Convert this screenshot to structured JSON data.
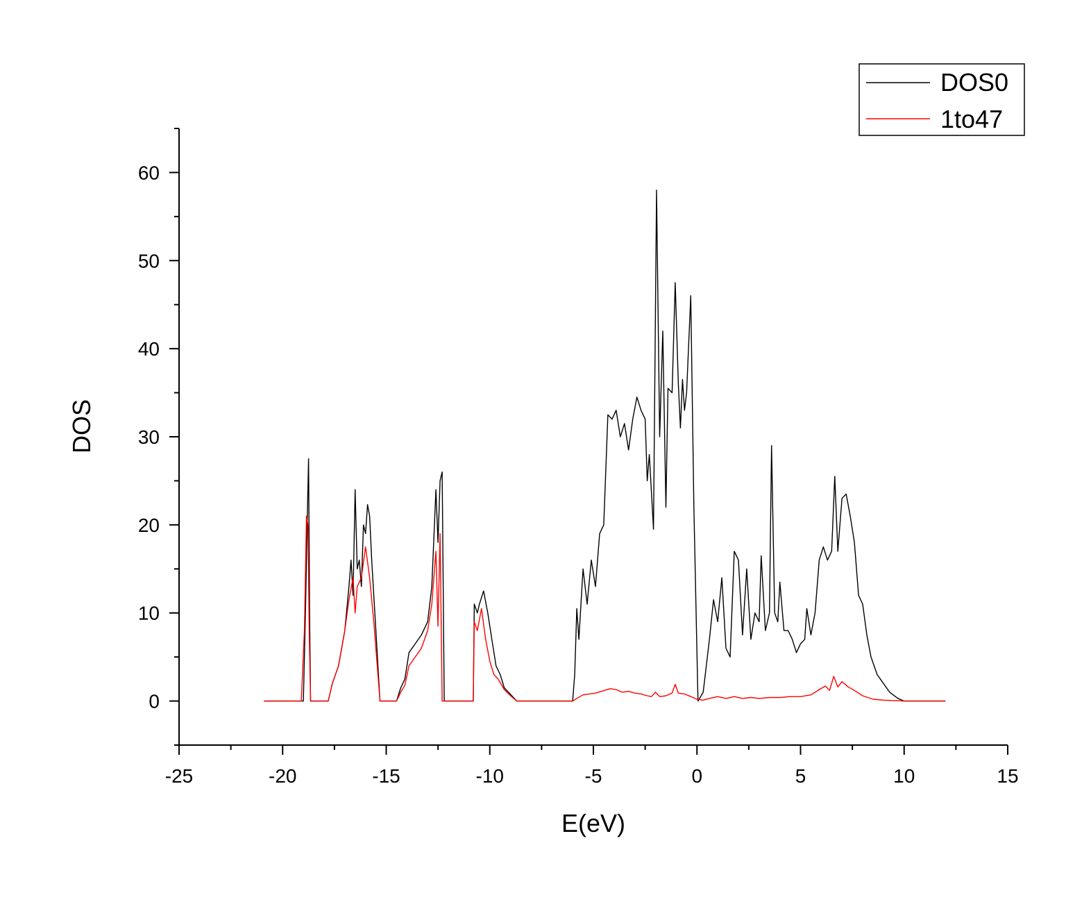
{
  "chart_data": {
    "type": "line",
    "xlabel": "E(eV)",
    "ylabel": "DOS",
    "xlim": [
      -25,
      15
    ],
    "ylim": [
      -5,
      65
    ],
    "x_major_ticks": [
      -25,
      -20,
      -15,
      -10,
      -5,
      0,
      5,
      10,
      15
    ],
    "x_tick_labels": [
      "-25",
      "-20",
      "-15",
      "-10",
      "-5",
      "0",
      "5",
      "10",
      "15"
    ],
    "x_minor_step": 2.5,
    "y_major_ticks": [
      0,
      10,
      20,
      30,
      40,
      50,
      60
    ],
    "y_tick_labels": [
      "0",
      "10",
      "20",
      "30",
      "40",
      "50",
      "60"
    ],
    "y_minor_step": 5,
    "grid": false,
    "legend": {
      "position": "top-right",
      "entries": [
        "DOS0",
        "1to47"
      ]
    },
    "series": [
      {
        "name": "DOS0",
        "color": "#000000",
        "points": [
          [
            -20.9,
            0
          ],
          [
            -19.0,
            0
          ],
          [
            -18.9,
            10
          ],
          [
            -18.8,
            22
          ],
          [
            -18.75,
            27.5
          ],
          [
            -18.7,
            10
          ],
          [
            -18.65,
            0
          ],
          [
            -17.8,
            0
          ],
          [
            -17.6,
            2
          ],
          [
            -17.3,
            4
          ],
          [
            -17.0,
            8
          ],
          [
            -16.8,
            13
          ],
          [
            -16.7,
            16
          ],
          [
            -16.6,
            12
          ],
          [
            -16.5,
            24
          ],
          [
            -16.4,
            15
          ],
          [
            -16.3,
            16
          ],
          [
            -16.2,
            13
          ],
          [
            -16.1,
            20
          ],
          [
            -16.0,
            19
          ],
          [
            -15.9,
            22.3
          ],
          [
            -15.8,
            21
          ],
          [
            -15.7,
            16
          ],
          [
            -15.5,
            8
          ],
          [
            -15.3,
            0
          ],
          [
            -14.5,
            0
          ],
          [
            -14.3,
            1.5
          ],
          [
            -14.1,
            2.5
          ],
          [
            -13.9,
            5.5
          ],
          [
            -13.6,
            6.5
          ],
          [
            -13.3,
            7.5
          ],
          [
            -13.0,
            9
          ],
          [
            -12.8,
            13
          ],
          [
            -12.6,
            24
          ],
          [
            -12.5,
            18
          ],
          [
            -12.4,
            25
          ],
          [
            -12.3,
            26
          ],
          [
            -12.2,
            0
          ],
          [
            -10.8,
            0
          ],
          [
            -10.75,
            11
          ],
          [
            -10.6,
            10
          ],
          [
            -10.5,
            11
          ],
          [
            -10.3,
            12.5
          ],
          [
            -10.1,
            10
          ],
          [
            -9.9,
            7
          ],
          [
            -9.7,
            4
          ],
          [
            -9.5,
            3
          ],
          [
            -9.3,
            1.5
          ],
          [
            -9.1,
            1
          ],
          [
            -8.9,
            0.5
          ],
          [
            -8.7,
            0
          ],
          [
            -6.0,
            0
          ],
          [
            -5.9,
            3
          ],
          [
            -5.8,
            10.5
          ],
          [
            -5.7,
            7
          ],
          [
            -5.5,
            15
          ],
          [
            -5.3,
            11
          ],
          [
            -5.1,
            16
          ],
          [
            -4.9,
            13
          ],
          [
            -4.7,
            19
          ],
          [
            -4.5,
            20
          ],
          [
            -4.3,
            32.5
          ],
          [
            -4.1,
            32
          ],
          [
            -3.9,
            33
          ],
          [
            -3.7,
            30
          ],
          [
            -3.5,
            31.5
          ],
          [
            -3.3,
            28.5
          ],
          [
            -3.1,
            32
          ],
          [
            -2.9,
            34.5
          ],
          [
            -2.7,
            33
          ],
          [
            -2.5,
            32
          ],
          [
            -2.4,
            25
          ],
          [
            -2.3,
            28
          ],
          [
            -2.1,
            19.5
          ],
          [
            -1.95,
            58
          ],
          [
            -1.8,
            30
          ],
          [
            -1.65,
            42
          ],
          [
            -1.5,
            22
          ],
          [
            -1.4,
            35.5
          ],
          [
            -1.2,
            35
          ],
          [
            -1.05,
            47.5
          ],
          [
            -0.9,
            36
          ],
          [
            -0.8,
            31
          ],
          [
            -0.7,
            36.5
          ],
          [
            -0.6,
            33
          ],
          [
            -0.5,
            35
          ],
          [
            -0.3,
            46
          ],
          [
            -0.15,
            22
          ],
          [
            0.05,
            0
          ],
          [
            0.3,
            1
          ],
          [
            0.6,
            7
          ],
          [
            0.8,
            11.5
          ],
          [
            1.0,
            9
          ],
          [
            1.2,
            14
          ],
          [
            1.4,
            6
          ],
          [
            1.6,
            5
          ],
          [
            1.8,
            17
          ],
          [
            2.0,
            16
          ],
          [
            2.2,
            7.5
          ],
          [
            2.4,
            15
          ],
          [
            2.6,
            7
          ],
          [
            2.8,
            10
          ],
          [
            3.0,
            9
          ],
          [
            3.1,
            16.5
          ],
          [
            3.3,
            8
          ],
          [
            3.5,
            10
          ],
          [
            3.6,
            29
          ],
          [
            3.75,
            10
          ],
          [
            3.9,
            9
          ],
          [
            4.0,
            13.5
          ],
          [
            4.2,
            8
          ],
          [
            4.4,
            8
          ],
          [
            4.6,
            7
          ],
          [
            4.8,
            5.5
          ],
          [
            5.0,
            6.5
          ],
          [
            5.2,
            7
          ],
          [
            5.3,
            10.5
          ],
          [
            5.5,
            7.5
          ],
          [
            5.7,
            10
          ],
          [
            5.9,
            16
          ],
          [
            6.1,
            17.5
          ],
          [
            6.3,
            16
          ],
          [
            6.5,
            17
          ],
          [
            6.65,
            25.5
          ],
          [
            6.8,
            17
          ],
          [
            7.0,
            23
          ],
          [
            7.2,
            23.5
          ],
          [
            7.4,
            21
          ],
          [
            7.6,
            18
          ],
          [
            7.8,
            12
          ],
          [
            8.0,
            11
          ],
          [
            8.2,
            7.5
          ],
          [
            8.4,
            5
          ],
          [
            8.7,
            3
          ],
          [
            9.0,
            2
          ],
          [
            9.3,
            1
          ],
          [
            9.7,
            0.3
          ],
          [
            10.0,
            0
          ],
          [
            12.0,
            0
          ]
        ]
      },
      {
        "name": "1to47",
        "color": "#ff0000",
        "points": [
          [
            -20.9,
            0
          ],
          [
            -19.1,
            0
          ],
          [
            -18.95,
            8
          ],
          [
            -18.85,
            21
          ],
          [
            -18.78,
            20
          ],
          [
            -18.72,
            8
          ],
          [
            -18.65,
            0
          ],
          [
            -17.8,
            0
          ],
          [
            -17.6,
            2
          ],
          [
            -17.3,
            4
          ],
          [
            -17.0,
            8
          ],
          [
            -16.8,
            11.5
          ],
          [
            -16.6,
            14
          ],
          [
            -16.5,
            10
          ],
          [
            -16.4,
            13
          ],
          [
            -16.2,
            14
          ],
          [
            -16.0,
            17.5
          ],
          [
            -15.8,
            14
          ],
          [
            -15.6,
            9
          ],
          [
            -15.3,
            0
          ],
          [
            -14.5,
            0
          ],
          [
            -14.3,
            1
          ],
          [
            -14.1,
            1.8
          ],
          [
            -13.9,
            4
          ],
          [
            -13.6,
            5
          ],
          [
            -13.3,
            6
          ],
          [
            -13.0,
            8
          ],
          [
            -12.8,
            11
          ],
          [
            -12.6,
            17
          ],
          [
            -12.5,
            8.5
          ],
          [
            -12.4,
            19
          ],
          [
            -12.3,
            0
          ],
          [
            -10.8,
            0
          ],
          [
            -10.75,
            9
          ],
          [
            -10.6,
            8
          ],
          [
            -10.4,
            10.5
          ],
          [
            -10.2,
            7
          ],
          [
            -10.0,
            4.5
          ],
          [
            -9.8,
            3
          ],
          [
            -9.6,
            2.5
          ],
          [
            -9.3,
            1.3
          ],
          [
            -9.0,
            0.6
          ],
          [
            -8.7,
            0
          ],
          [
            -6.0,
            0
          ],
          [
            -5.8,
            0.3
          ],
          [
            -5.5,
            0.7
          ],
          [
            -5.2,
            0.8
          ],
          [
            -4.9,
            0.9
          ],
          [
            -4.6,
            1.1
          ],
          [
            -4.2,
            1.4
          ],
          [
            -3.9,
            1.3
          ],
          [
            -3.6,
            1.0
          ],
          [
            -3.3,
            1.1
          ],
          [
            -3.0,
            0.9
          ],
          [
            -2.7,
            0.8
          ],
          [
            -2.4,
            0.6
          ],
          [
            -2.2,
            0.5
          ],
          [
            -2.0,
            1.0
          ],
          [
            -1.8,
            0.5
          ],
          [
            -1.5,
            0.6
          ],
          [
            -1.2,
            0.9
          ],
          [
            -1.05,
            1.9
          ],
          [
            -0.9,
            0.9
          ],
          [
            -0.6,
            0.8
          ],
          [
            -0.3,
            0.5
          ],
          [
            0.0,
            0.2
          ],
          [
            0.3,
            0.1
          ],
          [
            0.6,
            0.3
          ],
          [
            1.0,
            0.5
          ],
          [
            1.4,
            0.3
          ],
          [
            1.8,
            0.5
          ],
          [
            2.2,
            0.3
          ],
          [
            2.6,
            0.4
          ],
          [
            3.0,
            0.3
          ],
          [
            3.5,
            0.4
          ],
          [
            4.0,
            0.4
          ],
          [
            4.5,
            0.5
          ],
          [
            5.0,
            0.5
          ],
          [
            5.5,
            0.7
          ],
          [
            5.9,
            1.3
          ],
          [
            6.2,
            1.7
          ],
          [
            6.4,
            1.2
          ],
          [
            6.6,
            2.8
          ],
          [
            6.8,
            1.6
          ],
          [
            7.0,
            2.2
          ],
          [
            7.3,
            1.6
          ],
          [
            7.6,
            1.2
          ],
          [
            8.0,
            0.6
          ],
          [
            8.5,
            0.2
          ],
          [
            9.0,
            0.1
          ],
          [
            10.0,
            0
          ],
          [
            12.0,
            0
          ]
        ]
      }
    ]
  }
}
